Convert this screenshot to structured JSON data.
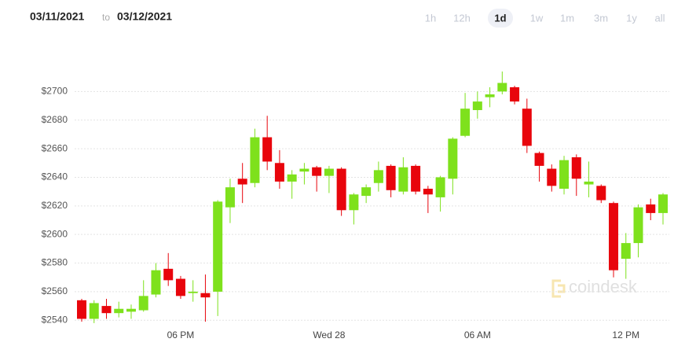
{
  "date_range": {
    "from": "03/11/2021",
    "separator": "to",
    "to": "03/12/2021"
  },
  "range_buttons": [
    "1h",
    "12h",
    "1d",
    "1w",
    "1m",
    "3m",
    "1y",
    "all"
  ],
  "selected_range": "1d",
  "watermark": "coindesk",
  "chart_data": {
    "type": "candlestick",
    "categories": [
      null,
      null,
      null,
      null,
      null,
      null,
      null,
      null,
      "06 PM",
      null,
      null,
      null,
      null,
      null,
      null,
      null,
      null,
      null,
      null,
      null,
      "Wed 28",
      null,
      null,
      null,
      null,
      null,
      null,
      null,
      null,
      null,
      null,
      null,
      "06 AM",
      null,
      null,
      null,
      null,
      null,
      null,
      null,
      null,
      null,
      null,
      null,
      "12 PM",
      null,
      null,
      null
    ],
    "open": [
      2554,
      2541,
      2550,
      2545,
      2546,
      2547,
      2558,
      2576,
      2569,
      2559,
      2559,
      2560,
      2619,
      2639,
      2636,
      2668,
      2650,
      2637,
      2644,
      2647,
      2641,
      2646,
      2617,
      2627,
      2636,
      2648,
      2630,
      2648,
      2632,
      2626,
      2639,
      2669,
      2687,
      2696,
      2700,
      2703,
      2688,
      2657,
      2646,
      2632,
      2654,
      2635,
      2634,
      2622,
      2583,
      2594,
      2621,
      2615
    ],
    "high": [
      2555,
      2554,
      2555,
      2553,
      2551,
      2568,
      2580,
      2587,
      2571,
      2568,
      2572,
      2624,
      2639,
      2650,
      2674,
      2683,
      2659,
      2645,
      2650,
      2648,
      2648,
      2647,
      2629,
      2635,
      2651,
      2649,
      2654,
      2649,
      2634,
      2641,
      2668,
      2699,
      2700,
      2703,
      2714,
      2704,
      2695,
      2658,
      2649,
      2655,
      2656,
      2651,
      2635,
      2623,
      2601,
      2621,
      2625,
      2629
    ],
    "low": [
      2539,
      2538,
      2541,
      2542,
      2541,
      2546,
      2556,
      2564,
      2555,
      2553,
      2539,
      2543,
      2608,
      2622,
      2633,
      2645,
      2632,
      2625,
      2635,
      2630,
      2629,
      2613,
      2607,
      2622,
      2630,
      2626,
      2628,
      2628,
      2615,
      2616,
      2628,
      2668,
      2681,
      2689,
      2698,
      2691,
      2657,
      2637,
      2630,
      2628,
      2627,
      2626,
      2622,
      2570,
      2569,
      2584,
      2610,
      2607
    ],
    "close": [
      2541,
      2552,
      2545,
      2548,
      2548,
      2557,
      2575,
      2568,
      2557,
      2560,
      2556,
      2623,
      2633,
      2635,
      2668,
      2651,
      2637,
      2642,
      2646,
      2641,
      2646,
      2617,
      2628,
      2633,
      2645,
      2631,
      2647,
      2630,
      2628,
      2640,
      2667,
      2688,
      2693,
      2698,
      2706,
      2693,
      2662,
      2648,
      2634,
      2652,
      2639,
      2637,
      2624,
      2575,
      2594,
      2619,
      2615,
      2628
    ],
    "up_color": "#7ee11c",
    "down_color": "#e8050c",
    "ylim": [
      2533,
      2720
    ],
    "yticks": [
      {
        "value": 2540,
        "label": "$2540"
      },
      {
        "value": 2560,
        "label": "$2560"
      },
      {
        "value": 2580,
        "label": "$2580"
      },
      {
        "value": 2600,
        "label": "$2600"
      },
      {
        "value": 2620,
        "label": "$2620"
      },
      {
        "value": 2640,
        "label": "$2640"
      },
      {
        "value": 2660,
        "label": "$2660"
      },
      {
        "value": 2680,
        "label": "$2680"
      },
      {
        "value": 2700,
        "label": "$2700"
      }
    ],
    "grid": true
  }
}
